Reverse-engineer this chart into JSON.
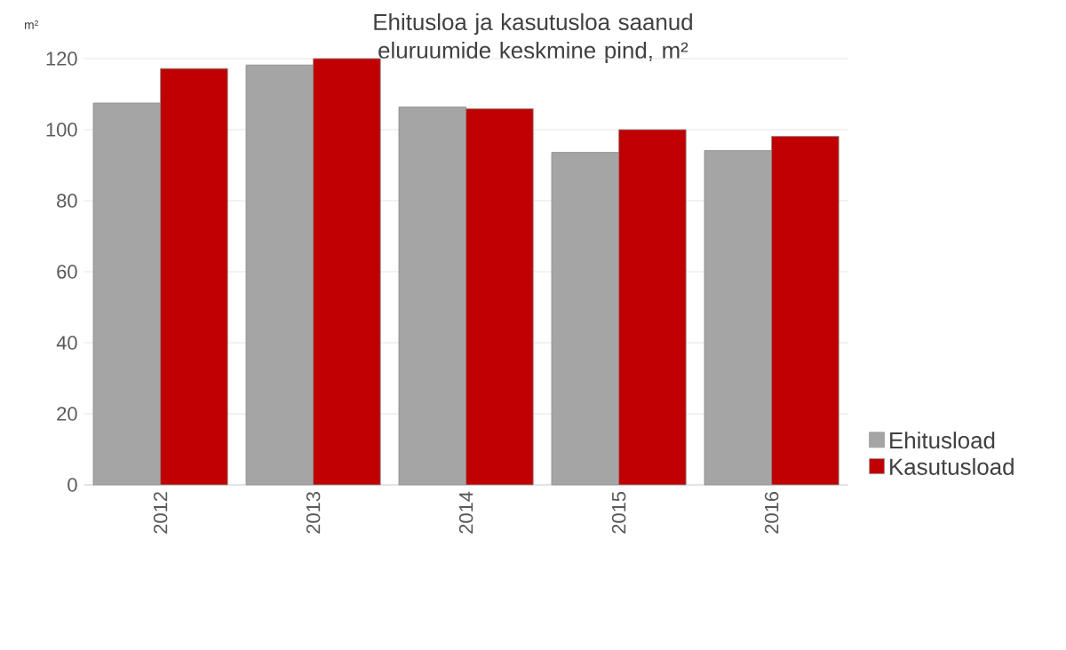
{
  "chart_data": {
    "type": "bar",
    "title": "Ehitusloa ja kasutusloa saanud eluruumide keskmine pind, m²",
    "ylabel": "m²",
    "categories": [
      "2012",
      "2013",
      "2014",
      "2015",
      "2016"
    ],
    "series": [
      {
        "name": "Ehitusload",
        "color": "#a5a5a5",
        "values": [
          107.5,
          118.2,
          106.4,
          93.6,
          94.1
        ]
      },
      {
        "name": "Kasutusload",
        "color": "#c00000",
        "values": [
          117.2,
          120,
          105.9,
          100.0,
          98.1
        ]
      }
    ],
    "ylim": [
      0,
      120
    ],
    "yticks": [
      0,
      20,
      40,
      60,
      80,
      100,
      120
    ],
    "grid": "y",
    "legend": "right"
  }
}
